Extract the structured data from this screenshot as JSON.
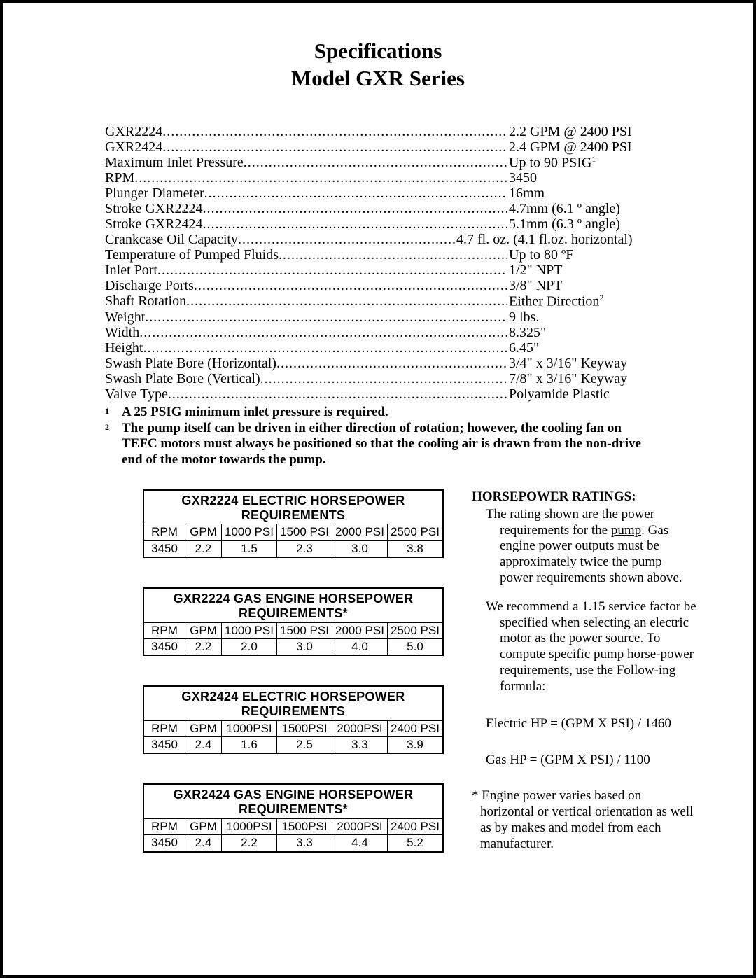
{
  "title_line1": "Specifications",
  "title_line2": "Model GXR Series",
  "specs": [
    {
      "label": "GXR2224",
      "value": "2.2 GPM @ 2400 PSI"
    },
    {
      "label": "GXR2424",
      "value": "2.4 GPM @ 2400 PSI"
    },
    {
      "label": "Maximum Inlet Pressure",
      "value": "Up to 90 PSIG",
      "sup": "1"
    },
    {
      "label": "RPM",
      "value": "3450"
    },
    {
      "label": "Plunger Diameter",
      "value": "16mm"
    },
    {
      "label": "Stroke GXR2224",
      "value": "4.7mm (6.1 º angle)"
    },
    {
      "label": "Stroke GXR2424",
      "value": "5.1mm (6.3 º angle)"
    },
    {
      "label": "Crankcase Oil Capacity",
      "value": "4.7 fl. oz. (4.1 fl.oz. horizontal)"
    },
    {
      "label": "Temperature of Pumped Fluids",
      "value": "Up to 80 ºF"
    },
    {
      "label": "Inlet Port",
      "value": "1/2\" NPT"
    },
    {
      "label": "Discharge Ports",
      "value": "3/8\" NPT"
    },
    {
      "label": "Shaft Rotation",
      "value": "Either Direction",
      "sup": "2"
    },
    {
      "label": "Weight",
      "value": "9 lbs."
    },
    {
      "label": "Width",
      "value": "8.325\""
    },
    {
      "label": "Height",
      "value": "6.45\""
    },
    {
      "label": "Swash Plate Bore (Horizontal)",
      "value": "3/4\" x 3/16\" Keyway"
    },
    {
      "label": "Swash Plate Bore (Vertical)",
      "value": "7/8\" x 3/16\" Keyway"
    },
    {
      "label": "Valve Type",
      "value": "Polyamide Plastic"
    }
  ],
  "footnote1_prefix": "A 25 PSIG minimum inlet pressure is ",
  "footnote1_underlined": "required",
  "footnote1_suffix": ".",
  "footnote2": "The pump itself can be driven in either direction of rotation; however, the cooling fan on TEFC motors must always be positioned so that the cooling air is drawn from the non-drive end of the motor towards the pump.",
  "tables": [
    {
      "title": "GXR2224 ELECTRIC HORSEPOWER REQUIREMENTS",
      "headers": [
        "RPM",
        "GPM",
        "1000 PSI",
        "1500 PSI",
        "2000 PSI",
        "2500 PSI"
      ],
      "row": [
        "3450",
        "2.2",
        "1.5",
        "2.3",
        "3.0",
        "3.8"
      ]
    },
    {
      "title": "GXR2224 GAS ENGINE HORSEPOWER REQUIREMENTS*",
      "headers": [
        "RPM",
        "GPM",
        "1000 PSI",
        "1500 PSI",
        "2000 PSI",
        "2500 PSI"
      ],
      "row": [
        "3450",
        "2.2",
        "2.0",
        "3.0",
        "4.0",
        "5.0"
      ]
    },
    {
      "title": "GXR2424 ELECTRIC HORSEPOWER REQUIREMENTS",
      "headers": [
        "RPM",
        "GPM",
        "1000PSI",
        "1500PSI",
        "2000PSI",
        "2400 PSI"
      ],
      "row": [
        "3450",
        "2.4",
        "1.6",
        "2.5",
        "3.3",
        "3.9"
      ]
    },
    {
      "title": "GXR2424 GAS ENGINE HORSEPOWER REQUIREMENTS*",
      "headers": [
        "RPM",
        "GPM",
        "1000PSI",
        "1500PSI",
        "2000PSI",
        "2400 PSI"
      ],
      "row": [
        "3450",
        "2.4",
        "2.2",
        "3.3",
        "4.4",
        "5.2"
      ]
    }
  ],
  "hp_heading": "HORSEPOWER RATINGS:",
  "hp_para1_a": "The rating shown are the power requirements for the ",
  "hp_para1_u": "pump",
  "hp_para1_b": ".  Gas engine power outputs must be approximately twice the pump power requirements shown above.",
  "hp_para2": "We recommend a 1.15 service factor be specified when selecting an electric motor as the power source.  To compute specific pump horse-power requirements, use the Follow-ing formula:",
  "formula1": "Electric HP = (GPM X PSI) / 1460",
  "formula2": "Gas HP = (GPM X PSI) / 1100",
  "asterisk": "* Engine power varies based on horizontal or vertical orientation as well as by makes and model from each manufacturer."
}
